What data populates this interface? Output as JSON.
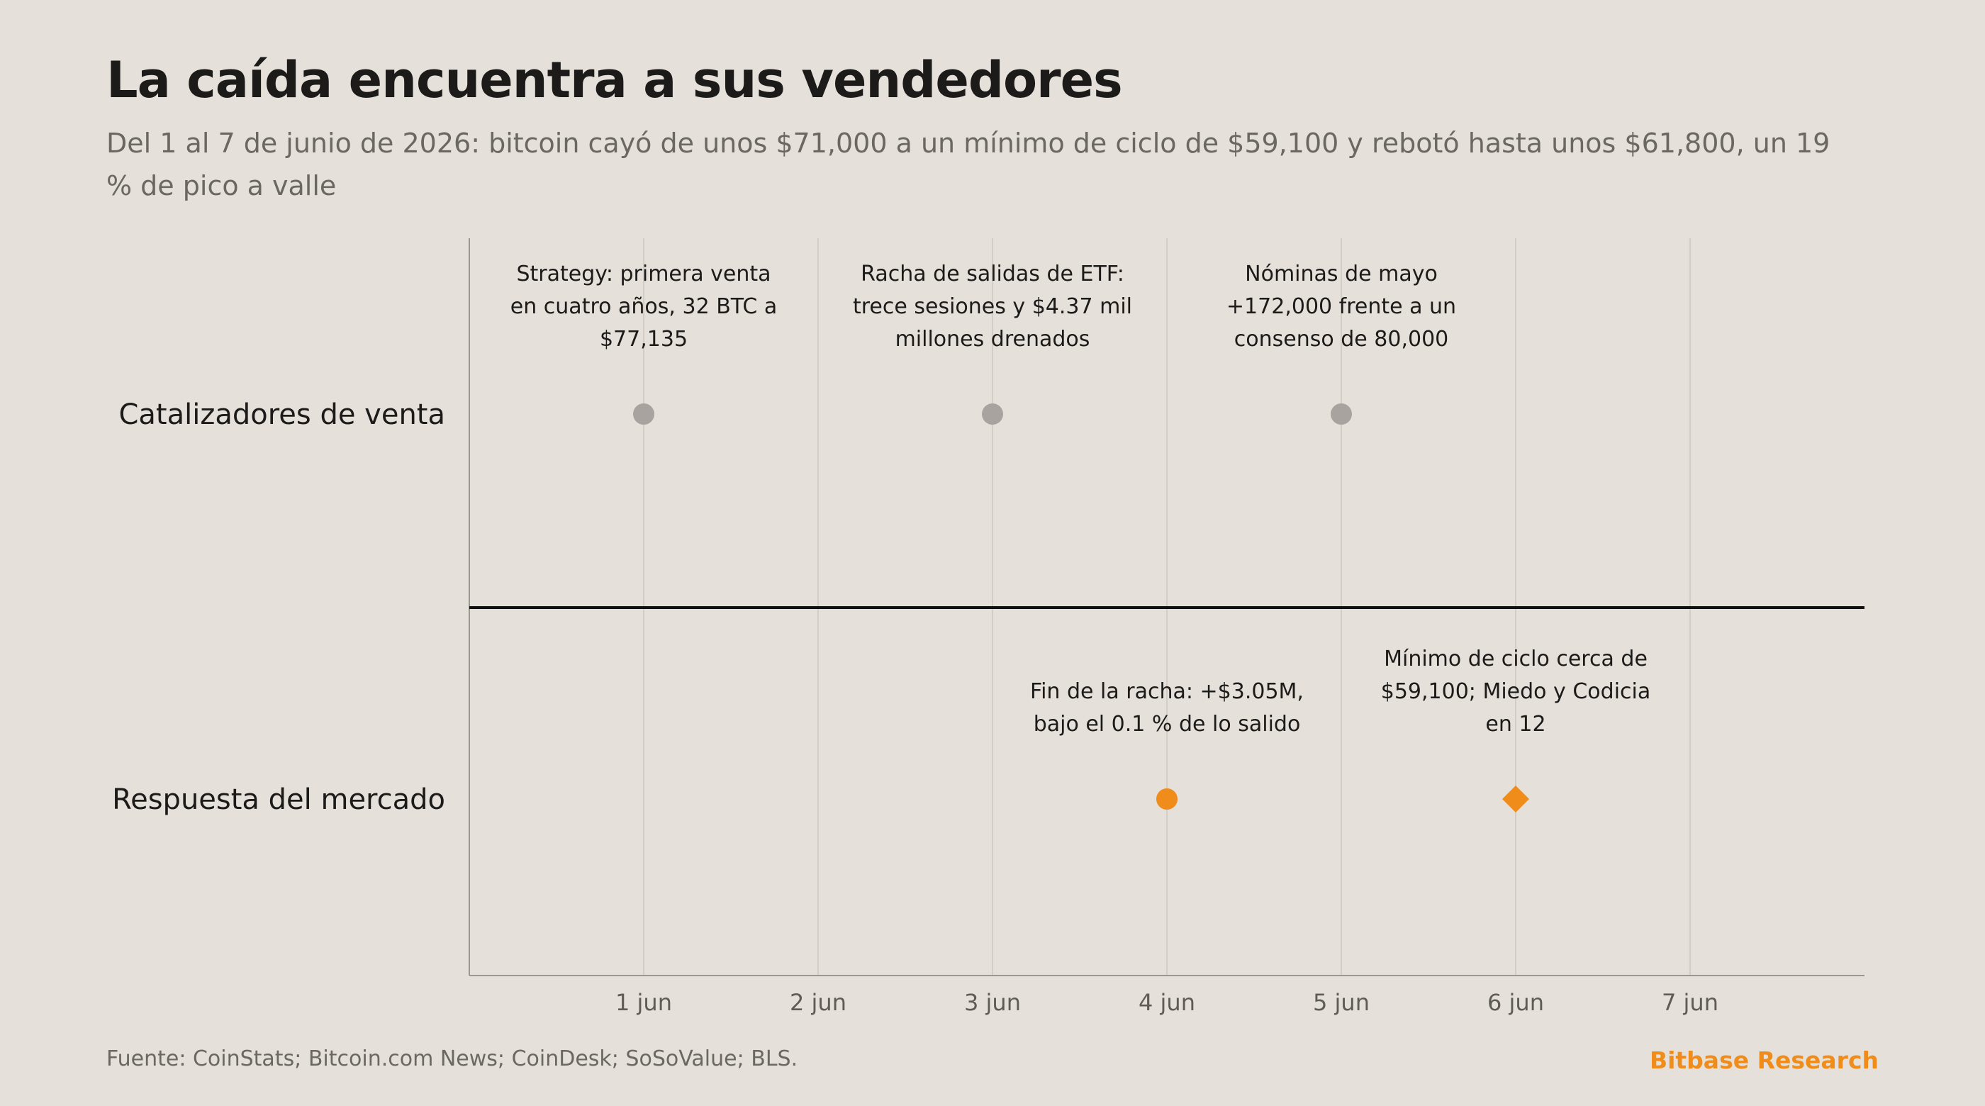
{
  "header": {
    "title": "La caída encuentra a sus vendedores",
    "subtitle": "Del 1 al 7 de junio de 2026: bitcoin cayó de unos $71,000 a un mínimo de ciclo de $59,100 y rebotó hasta unos $61,800, un 19 % de pico a valle"
  },
  "footer": {
    "source": "Fuente: CoinStats; Bitcoin.com News; CoinDesk; SoSoValue; BLS.",
    "brand": "Bitbase Research"
  },
  "chart_data": {
    "type": "scatter",
    "title": "La caída encuentra a sus vendedores",
    "subtitle": "Del 1 al 7 de junio de 2026: bitcoin cayó de unos $71,000 a un mínimo de ciclo de $59,100 y rebotó hasta unos $61,800, un 19 % de pico a valle",
    "xlabel": "",
    "ylabel": "",
    "x_ticks": [
      "1 jun",
      "2 jun",
      "3 jun",
      "4 jun",
      "5 jun",
      "6 jun",
      "7 jun"
    ],
    "xlim": [
      0,
      8
    ],
    "lanes": [
      "Catalizadores de venta",
      "Respuesta del mercado"
    ],
    "grid": true,
    "colors": {
      "seller": "#a8a39e",
      "market": "#f08c1a",
      "divider": "#111111"
    },
    "series": [
      {
        "lane": "Catalizadores de venta",
        "color": "#a8a39e",
        "marker": "circle",
        "points": [
          {
            "x": 1,
            "label": [
              "Strategy: primera venta",
              "en cuatro años, 32 BTC a",
              "$77,135"
            ]
          },
          {
            "x": 3,
            "label": [
              "Racha de salidas de ETF:",
              "trece sesiones y $4.37 mil",
              "millones drenados"
            ]
          },
          {
            "x": 5,
            "label": [
              "Nóminas de mayo",
              "+172,000 frente a un",
              "consenso de 80,000"
            ]
          }
        ]
      },
      {
        "lane": "Respuesta del mercado",
        "color": "#f08c1a",
        "points": [
          {
            "x": 4,
            "marker": "circle",
            "label": [
              "Fin de la racha: +$3.05M,",
              "bajo el 0.1 % de lo salido"
            ]
          },
          {
            "x": 6,
            "marker": "diamond",
            "label": [
              "Mínimo de ciclo cerca de",
              "$59,100; Miedo y Codicia",
              "en 12"
            ]
          }
        ]
      }
    ]
  }
}
